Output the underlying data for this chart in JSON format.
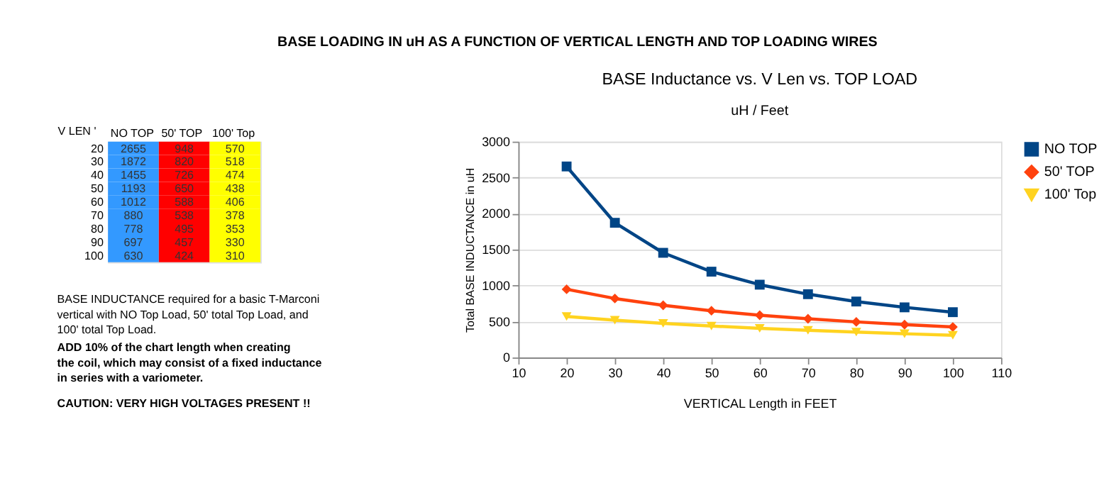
{
  "chart_data": [
    {
      "type": "heatmap",
      "data_labels": true,
      "ylabel": "V LEN '",
      "categories": [
        "NO TOP",
        "50' TOP",
        "100' Top"
      ],
      "y_categories": [
        "20",
        "30",
        "40",
        "50",
        "60",
        "70",
        "80",
        "90",
        "100"
      ],
      "colors": [
        "#3399ff",
        "#ff0000",
        "#ffff00"
      ],
      "cells": [
        [
          2655,
          948,
          570
        ],
        [
          1872,
          820,
          518
        ],
        [
          1455,
          726,
          474
        ],
        [
          1193,
          650,
          438
        ],
        [
          1012,
          588,
          406
        ],
        [
          880,
          538,
          378
        ],
        [
          778,
          495,
          353
        ],
        [
          697,
          457,
          330
        ],
        [
          630,
          424,
          310
        ]
      ],
      "annotations": [
        "BASE LOADING IN uH AS A FUNCTION OF VERTICAL LENGTH AND TOP LOADING WIRES",
        "BASE INDUCTANCE required for a basic T-Marconi\nvertical with NO Top Load, 50' total Top Load, and\n100' total Top Load.",
        "ADD 10% of the chart length when creating\nthe coil, which may consist of a fixed inductance\nin series with a variometer.",
        "CAUTION: VERY HIGH VOLTAGES PRESENT !!"
      ]
    },
    {
      "type": "line",
      "title": "BASE Inductance vs. V Len vs. TOP LOAD",
      "subtitle": "uH / Feet",
      "xlabel": "VERTICAL Length in FEET",
      "ylabel": "Total BASE INDUCTANCE in uH",
      "x": [
        20,
        30,
        40,
        50,
        60,
        70,
        80,
        90,
        100
      ],
      "series": [
        {
          "name": "NO TOP",
          "color": "#004586",
          "marker": "square",
          "values": [
            2655,
            1872,
            1455,
            1193,
            1012,
            880,
            778,
            697,
            630
          ]
        },
        {
          "name": "50' TOP",
          "color": "#ff420e",
          "marker": "diamond",
          "values": [
            948,
            820,
            726,
            650,
            588,
            538,
            495,
            457,
            424
          ]
        },
        {
          "name": "100' Top",
          "color": "#ffd320",
          "marker": "triangle",
          "values": [
            570,
            518,
            474,
            438,
            406,
            378,
            353,
            330,
            310
          ]
        }
      ],
      "xlim": [
        10,
        110
      ],
      "xticks": [
        10,
        20,
        30,
        40,
        50,
        60,
        70,
        80,
        90,
        100,
        110
      ],
      "ylim": [
        0,
        3000
      ],
      "yticks": [
        0,
        500,
        1000,
        1500,
        2000,
        2500,
        3000
      ],
      "grid": "y",
      "legend": "right",
      "line_style": "solid"
    }
  ]
}
